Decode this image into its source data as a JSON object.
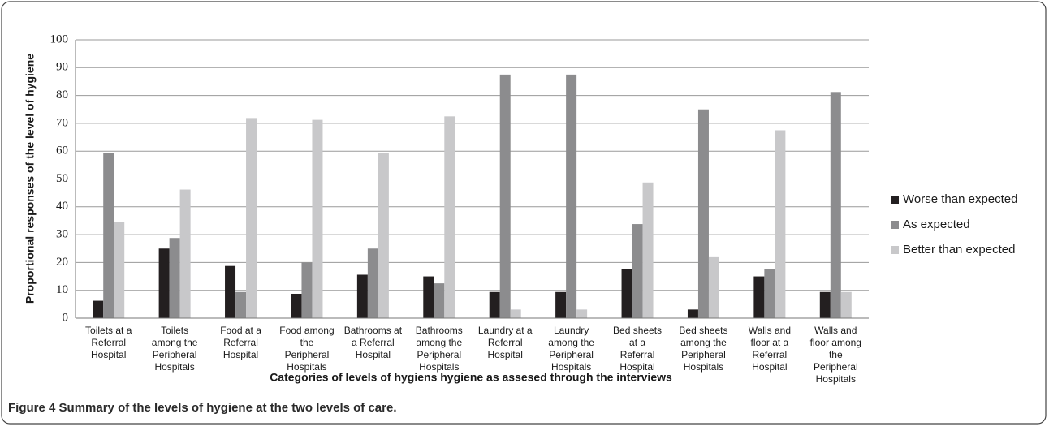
{
  "chart_data": {
    "type": "bar",
    "categories": [
      "Toilets at a Referral Hospital",
      "Toilets among the Peripheral Hospitals",
      "Food at a Referral Hospital",
      "Food among the Peripheral Hospitals",
      "Bathrooms at a Referral Hospital",
      "Bathrooms among the Peripheral Hospitals",
      "Laundry at a Referral Hospital",
      "Laundry among the Peripheral Hospitals",
      "Bed sheets at a Referral Hospital",
      "Bed sheets among the Peripheral Hospitals",
      "Walls and floor at a Referral Hospital",
      "Walls and floor among the Peripheral Hospitals"
    ],
    "series": [
      {
        "name": "Worse than expected",
        "color": "#231f20",
        "values": [
          6.25,
          25,
          18.75,
          8.75,
          15.6,
          15,
          9.4,
          9.4,
          17.5,
          3.1,
          15,
          9.4
        ]
      },
      {
        "name": "As expected",
        "color": "#8c8c8e",
        "values": [
          59.4,
          28.8,
          9.4,
          20,
          25,
          12.5,
          87.5,
          87.5,
          33.8,
          75,
          17.5,
          81.25
        ]
      },
      {
        "name": "Better than expected",
        "color": "#c8c8ca",
        "values": [
          34.4,
          46.2,
          71.9,
          71.25,
          59.4,
          72.5,
          3.1,
          3.1,
          48.75,
          21.9,
          67.5,
          9.4
        ]
      }
    ],
    "ylim": [
      0,
      100
    ],
    "yticks": [
      0,
      10,
      20,
      30,
      40,
      50,
      60,
      70,
      80,
      90,
      100
    ],
    "grid": true,
    "legend": "right",
    "ylabel": "Proportional responses of the level of hygiene",
    "xlabel": "Categories of  levels of hygiens hygiene  as assesed through the interviews"
  },
  "caption_label": "Figure 4",
  "caption": "Summary of the levels of hygiene at the two levels of care."
}
